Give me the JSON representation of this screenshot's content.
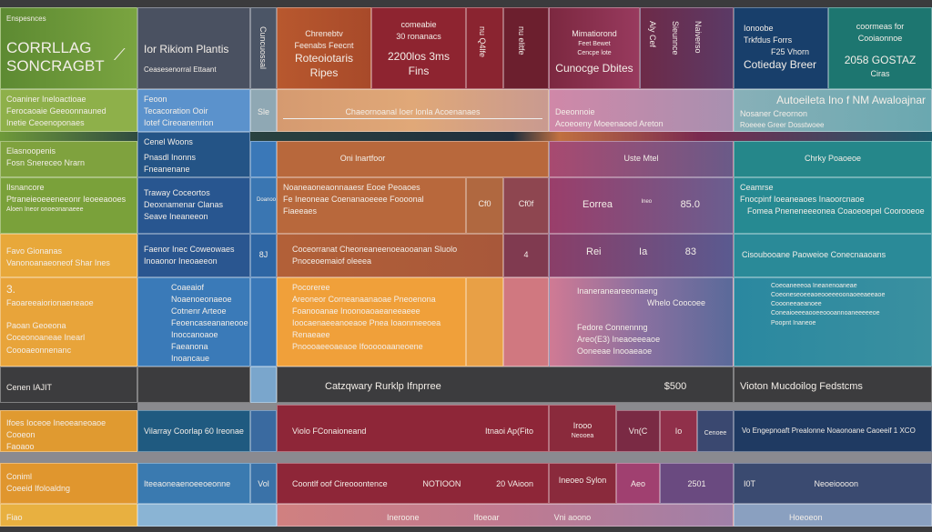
{
  "header": {
    "c1": {
      "small": "Enspesnces",
      "title1": "CORRLLAG",
      "title2": "SONCRAGBT"
    },
    "c2": {
      "title": "Ior Rikiom Plantis",
      "sub": "Ceasesenorral Ettaant"
    },
    "c3": {
      "vertical": "Cuncuossal"
    },
    "c4": {
      "l1": "Chrenebtv",
      "l2": "Feenabs Feecnt",
      "title": "Roteoiotaris",
      "sub": "Ripes"
    },
    "c5": {
      "l1": "comeabie",
      "l2": "30 ronanacs",
      "title": "2200los 3ms",
      "sub": "Fins"
    },
    "c6": {
      "vertical": "nu elitfe"
    },
    "c7": {
      "vertical": "nu Q4lfe"
    },
    "c8": {
      "l1": "Mimatiorond",
      "l2": "Feet Bewet",
      "l3": "Cencpe lote",
      "title": "Cunocge Dbites"
    },
    "c9": {
      "v1": "Aly Cef",
      "v2": "Sieunnce",
      "v3": "Naiverso"
    },
    "c10": {
      "l1": "Ionoobe",
      "l2": "Trkfdus Forrs",
      "l3": "F25 Vhorn",
      "title": "Cotieday Breer"
    },
    "c11": {
      "l1": "coormeas for",
      "l2": "Cooiaonnoe",
      "title": "2058 GOSTAZ",
      "sub": "Ciras"
    }
  },
  "rows": [
    {
      "cells": [
        "Coaniner Ineloactioae",
        "Ferocaoaie Geeoonnauned",
        "Inetie Ceoenoponaes",
        "Feoon",
        "Tecacoration Ooir",
        "Iotef Cireoanenrion",
        "Sle",
        "Chaeornoanal Ioer lonla Acoenanaes",
        "Deeonnoie",
        "Acoeoeny Moeenaoed Areton",
        "Autoeileta Ino f NM Awaloajnar",
        "Nosaner Creornon",
        "Roeeee Greer Dosstwoee"
      ]
    },
    {
      "cells": [
        "Elasnoopenis",
        "Fosn Snereceo Nrarn",
        "Cenel Woons",
        "Pnasdl Inonns",
        "Fneanenane",
        "Oni lnartfoor",
        "Uste Mtel",
        "Chrky Poaoeoe"
      ]
    },
    {
      "cells": [
        "Ilsnancore",
        "Ptraneieoeeeneeonr Ieoeeaooes",
        "Aloen Ineor onoeonanaeee",
        "Traway Coceortos",
        "Deoxnamenar Clanas",
        "Seave Ineaneeon",
        "Doanooonnarie",
        "Noaneaoneaonnaaesr Eooe Peoaoes",
        "Fe Ineoneae Coenanaoeeee Foooonal Fiaeeaes",
        "Cf0",
        "Cf0f",
        "Eorrea",
        "Ineo",
        "85.0",
        "Ceamrse",
        "Fnocpinf Ioeaneaoes Inaoorcnaoe",
        "Fomea Pneneneeeonea Coaoeoepel Coorooeoe"
      ]
    },
    {
      "cells": [
        "Favo Gionanas",
        "Vanonoanaeoneof Shar Ines",
        "Faenor Inec Coweowaes",
        "Inoaonor Ineoaeeon",
        "8J",
        "Coceorranat Cheoneaneenoeaooanan Sluolo",
        "Pnoceoemaiof oleeea",
        "4",
        "Rei",
        "Ia",
        "83",
        "Cisoubooane Paoweioe Conecnaaoans"
      ]
    },
    {
      "cells": [
        "3.",
        "Faoareeaiorionaeneaoe",
        "Paoan Geoeona",
        "Coceonoaneae Inearl Coooaeonnenanc",
        "Coaeaiof Noaenoeonaeoe",
        "Cotnenr Arteoe",
        "Feoencaseananeooe",
        "Inoccanoaoe",
        "Faeanona Inoancaue",
        "Pocoreree",
        "Areoneor Corneanaanaoae Pneoenona",
        "Foanooanae Inoonoaoaeaneeaeee",
        "Ioocaenaeeanoeaoe Pnea Ioaonmeeoea Renaeaee",
        "Pnoooaeeoaeaoe Ifoooooaaneoene",
        "Inaneraneareeonaeng",
        "Whelo Coocoee",
        "Fedore Connennng",
        "Areo(E3) Ineaoeeeaoe",
        "Ooneeae Inooaeaoe",
        "Coeoaneeeoa Ineanenoaneae",
        "Coeoneseoeeaoeooeeeoonaoeeaeeaoe",
        "Coooneeaeanoee",
        "Coneaioeeeaooeeoooannoaneeeeeoe",
        "Poopnt Inaneoe"
      ]
    },
    {
      "cells": [
        "Cenen IAJIT",
        "Catzqwary Rurklp Ifnprree",
        "$500",
        "Vioton Mucdoilog Fedstcms"
      ]
    },
    {
      "cells": [
        "Ifoes Ioceoe Ineoeaneoaoe Cooeon",
        "Faoaoo",
        "Vilarray Coorlap 60 Ireonae",
        "Violo FConaioneand",
        "Itnaoi Ap(Fito",
        "Irooo",
        "Neooea",
        "Vn(C",
        "Io",
        "Cenoee",
        "Vo Engepnoaft Prealonne Noaonoane Caoeeif 1 XCO"
      ]
    },
    {
      "cells": [
        "Coniml",
        "Coeeid Ifoloaldng",
        "Iteeaoneaenoeeoeonne",
        "Vol",
        "Coontlf oof Cireooontence",
        "NOTIOON",
        "20 VAioon",
        "Ineoeo Sylon",
        "Aeo",
        "2501",
        "I0T",
        "Neoeioooon"
      ]
    },
    {
      "cells": [
        "Fiao",
        "Ineroone",
        "Ifoeoar",
        "Vni aoono",
        "Hoeoeon"
      ]
    }
  ],
  "colors": {
    "green": "#6f9a3a",
    "orange": "#e59a38",
    "red": "#8f2635",
    "teal": "#207b7c",
    "navy": "#1c426c"
  }
}
